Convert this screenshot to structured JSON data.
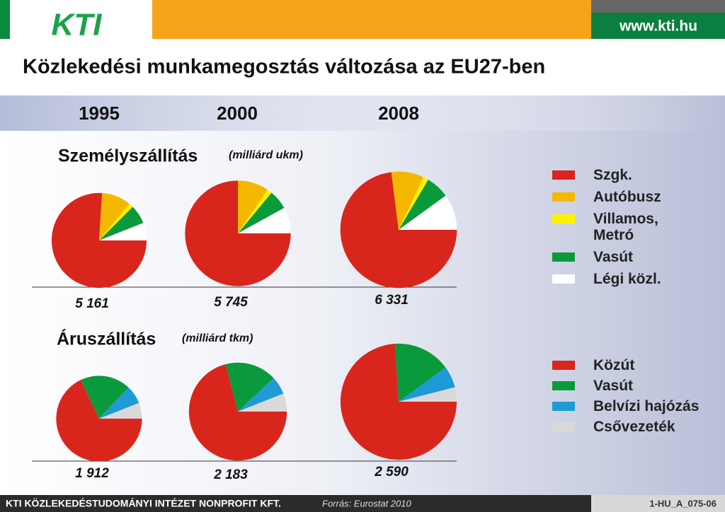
{
  "logo": "KTI",
  "url": "www.kti.hu",
  "title": "Közlekedési munkamegosztás változása az EU27-ben",
  "footer": {
    "org": "KTI KÖZLEKEDÉSTUDOMÁNYI INTÉZET NONPROFIT KFT.",
    "source": "Forrás: Eurostat 2010",
    "code": "1-HU_A_075-06"
  },
  "chart_data": [
    {
      "type": "pie",
      "title": "Személyszállítás",
      "subtitle": "(milliárd ukm)",
      "categories": [
        "1995",
        "2000",
        "2008"
      ],
      "totals": [
        {
          "value": 5161,
          "label": "5 161"
        },
        {
          "value": 5745,
          "label": "5 745"
        },
        {
          "value": 6331,
          "label": "6 331"
        }
      ],
      "series": [
        {
          "name": "Szgk.",
          "color": "#d9261c",
          "values": [
            76,
            75,
            73
          ]
        },
        {
          "name": "Autóbusz",
          "color": "#f5b800",
          "values": [
            10,
            9.5,
            9
          ]
        },
        {
          "name": "Villamos, Metró",
          "color": "#fff200",
          "values": [
            1.5,
            1.5,
            1.5
          ]
        },
        {
          "name": "Vasút",
          "color": "#0a9a3c",
          "values": [
            6.5,
            6,
            6.5
          ]
        },
        {
          "name": "Légi közl.",
          "color": "#ffffff",
          "values": [
            6,
            8,
            10
          ]
        }
      ]
    },
    {
      "type": "pie",
      "title": "Áruszállítás",
      "subtitle": "(milliárd tkm)",
      "totals": [
        {
          "value": 1912,
          "label": "1 912"
        },
        {
          "value": 2183,
          "label": "2 183"
        },
        {
          "value": 2590,
          "label": "2 590"
        }
      ],
      "series": [
        {
          "name": "Közút",
          "color": "#d9261c",
          "values": [
            68,
            71,
            74
          ]
        },
        {
          "name": "Vasút",
          "color": "#0a9a3c",
          "values": [
            19,
            17,
            16
          ]
        },
        {
          "name": "Belvízi hajózás",
          "color": "#1e9ad6",
          "values": [
            7,
            6,
            6
          ]
        },
        {
          "name": "Csővezeték",
          "color": "#d9d9d9",
          "values": [
            6,
            6,
            4
          ]
        }
      ]
    }
  ]
}
